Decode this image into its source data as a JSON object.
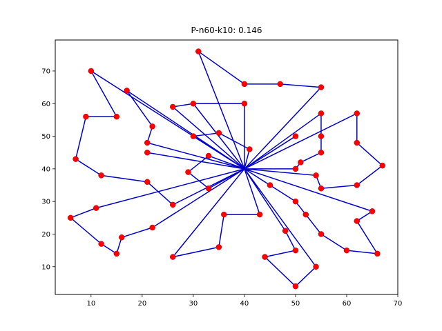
{
  "chart_data": {
    "type": "scatter",
    "title": "P-n60-k10: 0.146",
    "xlabel": "",
    "ylabel": "",
    "xlim": [
      3,
      70
    ],
    "ylim": [
      1.5,
      79.5
    ],
    "xticks": [
      10,
      20,
      30,
      40,
      50,
      60,
      70
    ],
    "yticks": [
      10,
      20,
      30,
      40,
      50,
      60,
      70
    ],
    "grid": false,
    "depot": [
      40,
      40
    ],
    "point_color": "#ff0000",
    "point_edge_color": "#cc0000",
    "route_color": "#0000cc",
    "customers": [
      [
        31,
        76
      ],
      [
        40,
        66
      ],
      [
        47,
        66
      ],
      [
        55,
        65
      ],
      [
        30,
        60
      ],
      [
        40,
        60
      ],
      [
        26,
        59
      ],
      [
        55,
        57
      ],
      [
        62,
        57
      ],
      [
        9,
        56
      ],
      [
        15,
        56
      ],
      [
        22,
        53
      ],
      [
        35,
        51
      ],
      [
        30,
        50
      ],
      [
        50,
        50
      ],
      [
        55,
        50
      ],
      [
        21,
        48
      ],
      [
        62,
        48
      ],
      [
        21,
        45
      ],
      [
        55,
        45
      ],
      [
        33,
        44
      ],
      [
        7,
        43
      ],
      [
        51,
        42
      ],
      [
        67,
        41
      ],
      [
        50,
        40
      ],
      [
        29,
        39
      ],
      [
        12,
        38
      ],
      [
        54,
        38
      ],
      [
        21,
        36
      ],
      [
        55,
        34
      ],
      [
        62,
        35
      ],
      [
        33,
        34
      ],
      [
        45,
        35
      ],
      [
        50,
        30
      ],
      [
        26,
        29
      ],
      [
        11,
        28
      ],
      [
        65,
        27
      ],
      [
        36,
        26
      ],
      [
        43,
        26
      ],
      [
        52,
        26
      ],
      [
        6,
        25
      ],
      [
        62,
        24
      ],
      [
        22,
        22
      ],
      [
        48,
        21
      ],
      [
        55,
        20
      ],
      [
        16,
        19
      ],
      [
        12,
        17
      ],
      [
        35,
        16
      ],
      [
        50,
        15
      ],
      [
        60,
        15
      ],
      [
        15,
        14
      ],
      [
        66,
        14
      ],
      [
        26,
        13
      ],
      [
        44,
        13
      ],
      [
        54,
        10
      ],
      [
        50,
        4
      ],
      [
        10,
        70
      ],
      [
        17,
        64
      ],
      [
        41,
        46
      ]
    ],
    "series": [
      {
        "points": [
          [
            40,
            40
          ],
          [
            31,
            76
          ],
          [
            40,
            66
          ],
          [
            47,
            66
          ],
          [
            55,
            65
          ],
          [
            40,
            40
          ]
        ]
      },
      {
        "points": [
          [
            40,
            40
          ],
          [
            30,
            60
          ],
          [
            40,
            60
          ],
          [
            40,
            40
          ]
        ]
      },
      {
        "points": [
          [
            40,
            40
          ],
          [
            26,
            59
          ],
          [
            30,
            60
          ]
        ]
      },
      {
        "points": [
          [
            40,
            40
          ],
          [
            17,
            64
          ],
          [
            22,
            53
          ],
          [
            21,
            48
          ],
          [
            40,
            40
          ]
        ]
      },
      {
        "points": [
          [
            40,
            40
          ],
          [
            10,
            70
          ],
          [
            15,
            56
          ],
          [
            9,
            56
          ],
          [
            7,
            43
          ],
          [
            12,
            38
          ],
          [
            21,
            36
          ],
          [
            26,
            29
          ],
          [
            40,
            40
          ]
        ]
      },
      {
        "points": [
          [
            40,
            40
          ],
          [
            30,
            50
          ],
          [
            35,
            51
          ],
          [
            41,
            46
          ],
          [
            40,
            40
          ]
        ]
      },
      {
        "points": [
          [
            40,
            40
          ],
          [
            55,
            57
          ],
          [
            55,
            50
          ],
          [
            55,
            45
          ],
          [
            51,
            42
          ],
          [
            50,
            40
          ],
          [
            40,
            40
          ]
        ]
      },
      {
        "points": [
          [
            40,
            40
          ],
          [
            62,
            57
          ],
          [
            62,
            48
          ],
          [
            67,
            41
          ],
          [
            62,
            35
          ],
          [
            55,
            34
          ],
          [
            54,
            38
          ],
          [
            40,
            40
          ]
        ]
      },
      {
        "points": [
          [
            40,
            40
          ],
          [
            50,
            50
          ]
        ]
      },
      {
        "points": [
          [
            40,
            40
          ],
          [
            21,
            45
          ]
        ]
      },
      {
        "points": [
          [
            40,
            40
          ],
          [
            33,
            44
          ],
          [
            29,
            39
          ],
          [
            33,
            34
          ],
          [
            40,
            40
          ]
        ]
      },
      {
        "points": [
          [
            40,
            40
          ],
          [
            11,
            28
          ],
          [
            6,
            25
          ],
          [
            12,
            17
          ],
          [
            15,
            14
          ],
          [
            16,
            19
          ],
          [
            22,
            22
          ],
          [
            40,
            40
          ]
        ]
      },
      {
        "points": [
          [
            40,
            40
          ],
          [
            26,
            13
          ],
          [
            35,
            16
          ],
          [
            36,
            26
          ],
          [
            43,
            26
          ],
          [
            40,
            40
          ]
        ]
      },
      {
        "points": [
          [
            40,
            40
          ],
          [
            45,
            35
          ],
          [
            50,
            30
          ],
          [
            52,
            26
          ],
          [
            55,
            20
          ],
          [
            60,
            15
          ],
          [
            66,
            14
          ],
          [
            62,
            24
          ],
          [
            65,
            27
          ],
          [
            40,
            40
          ]
        ]
      },
      {
        "points": [
          [
            40,
            40
          ],
          [
            48,
            21
          ],
          [
            50,
            15
          ],
          [
            44,
            13
          ],
          [
            50,
            4
          ],
          [
            54,
            10
          ],
          [
            40,
            40
          ]
        ]
      }
    ]
  }
}
